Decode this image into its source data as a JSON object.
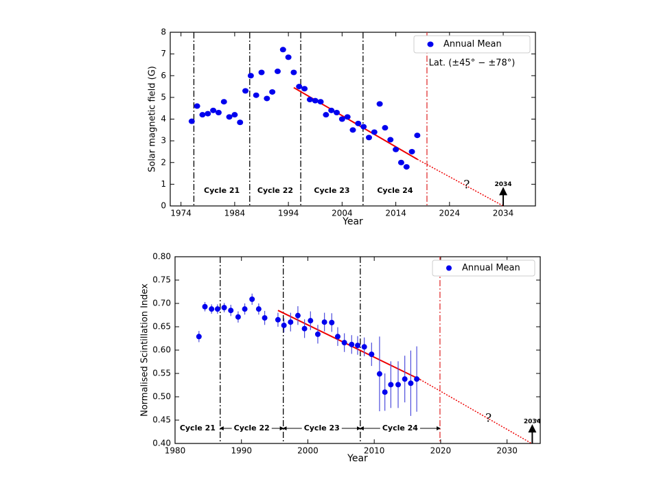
{
  "chart_data": [
    {
      "type": "scatter",
      "x_label": "Year",
      "y_label": "Solar magnetic field (G)",
      "xlim": [
        1972,
        2040
      ],
      "ylim": [
        0,
        8
      ],
      "xticks": [
        1974,
        1984,
        1994,
        2004,
        2014,
        2024,
        2034
      ],
      "yticks": [
        0,
        1,
        2,
        3,
        4,
        5,
        6,
        7,
        8
      ],
      "series": [
        {
          "name": "Annual Mean",
          "color": "#0000ee",
          "x": [
            1976,
            1977,
            1978,
            1979,
            1980,
            1981,
            1982,
            1983,
            1984,
            1985,
            1986,
            1987,
            1988,
            1989,
            1990,
            1991,
            1992,
            1993,
            1994,
            1995,
            1996,
            1997,
            1998,
            1999,
            2000,
            2001,
            2002,
            2003,
            2004,
            2005,
            2006,
            2007,
            2008,
            2009,
            2010,
            2011,
            2012,
            2013,
            2014,
            2015,
            2016,
            2017,
            2018
          ],
          "values": [
            3.9,
            4.6,
            4.2,
            4.25,
            4.4,
            4.3,
            4.8,
            4.1,
            4.2,
            3.85,
            5.3,
            6.0,
            5.1,
            6.15,
            4.95,
            5.25,
            6.2,
            7.2,
            6.85,
            6.15,
            5.5,
            5.4,
            4.9,
            4.85,
            4.8,
            4.2,
            4.4,
            4.3,
            4.0,
            4.1,
            3.5,
            3.8,
            3.65,
            3.15,
            3.4,
            4.7,
            3.6,
            3.05,
            2.6,
            2.0,
            1.8,
            2.5,
            3.25
          ]
        }
      ],
      "trend": {
        "color": "#ee0000",
        "x": [
          1995,
          2018
        ],
        "values": [
          5.45,
          2.15
        ]
      },
      "extrapolation": {
        "color": "#ee0000",
        "x": [
          2018,
          2034
        ],
        "values": [
          2.15,
          0
        ]
      },
      "cycle_boundaries": [
        1976.4,
        1986.8,
        1996.3,
        2007.9
      ],
      "prediction_line": 2019.8,
      "cycles": [
        "Cycle 21",
        "Cycle 22",
        "Cycle 23",
        "Cycle 24"
      ],
      "legend_note": "Lat. (±45° − ±78°)",
      "legend": "upper right",
      "annotations": [
        {
          "text": "?",
          "x": 2027.2,
          "y": 0.95
        },
        {
          "text": "2034",
          "x": 2034,
          "y": 1.0
        }
      ]
    },
    {
      "type": "scatter",
      "x_label": "Year",
      "y_label": "Normalised Scintillation Index",
      "xlim": [
        1980,
        2035
      ],
      "ylim": [
        0.4,
        0.8
      ],
      "xticks": [
        1980,
        1990,
        2000,
        2010,
        2020,
        2030
      ],
      "yticks": [
        {
          "value": 0.4,
          "label": "0.40"
        },
        0.45,
        {
          "value": 0.5,
          "label": "0.50"
        },
        0.55,
        {
          "value": 0.6,
          "label": "0.60"
        },
        0.65,
        {
          "value": 0.7,
          "label": "0.70"
        },
        0.75,
        {
          "value": 0.8,
          "label": "0.80"
        }
      ],
      "series": [
        {
          "name": "Annual Mean",
          "color": "#0000ee",
          "error_color": "#4b4bdc",
          "x": [
            1983.6,
            1984.5,
            1985.5,
            1986.4,
            1987.4,
            1988.4,
            1989.5,
            1990.5,
            1991.6,
            1992.6,
            1993.5,
            1995.5,
            1996.4,
            1997.4,
            1998.5,
            1999.5,
            2000.4,
            2001.5,
            2002.5,
            2003.6,
            2004.5,
            2005.5,
            2006.6,
            2007.5,
            2008.5,
            2009.6,
            2010.8,
            2011.6,
            2012.5,
            2013.6,
            2014.6,
            2015.5,
            2016.4
          ],
          "values": [
            0.629,
            0.693,
            0.688,
            0.688,
            0.691,
            0.685,
            0.671,
            0.688,
            0.709,
            0.688,
            0.669,
            0.665,
            0.653,
            0.66,
            0.674,
            0.646,
            0.663,
            0.634,
            0.66,
            0.659,
            0.629,
            0.616,
            0.612,
            0.61,
            0.607,
            0.591,
            0.549,
            0.51,
            0.526,
            0.526,
            0.538,
            0.529,
            0.538
          ],
          "errors": [
            0.012,
            0.01,
            0.01,
            0.01,
            0.01,
            0.012,
            0.012,
            0.012,
            0.012,
            0.012,
            0.015,
            0.015,
            0.015,
            0.02,
            0.02,
            0.02,
            0.02,
            0.02,
            0.02,
            0.02,
            0.02,
            0.02,
            0.02,
            0.02,
            0.02,
            0.025,
            0.08,
            0.04,
            0.05,
            0.05,
            0.05,
            0.07,
            0.07
          ]
        }
      ],
      "trend": {
        "color": "#ee0000",
        "x": [
          1995.5,
          2016.9
        ],
        "values": [
          0.685,
          0.537
        ]
      },
      "extrapolation": {
        "color": "#ee0000",
        "x": [
          2016.9,
          2033.7
        ],
        "values": [
          0.537,
          0.4
        ]
      },
      "cycle_boundaries": [
        1986.8,
        1996.3,
        2007.9
      ],
      "prediction_line": 2019.9,
      "cycles": [
        "Cycle 21",
        "Cycle 22",
        "Cycle 23",
        "Cycle 24"
      ],
      "cycle_arrows": true,
      "legend": "upper right",
      "annotations": [
        {
          "text": "?",
          "x": 2027.2,
          "y": 0.453
        },
        {
          "text": "2034",
          "x": 2033.8,
          "y": 0.447
        }
      ]
    }
  ]
}
